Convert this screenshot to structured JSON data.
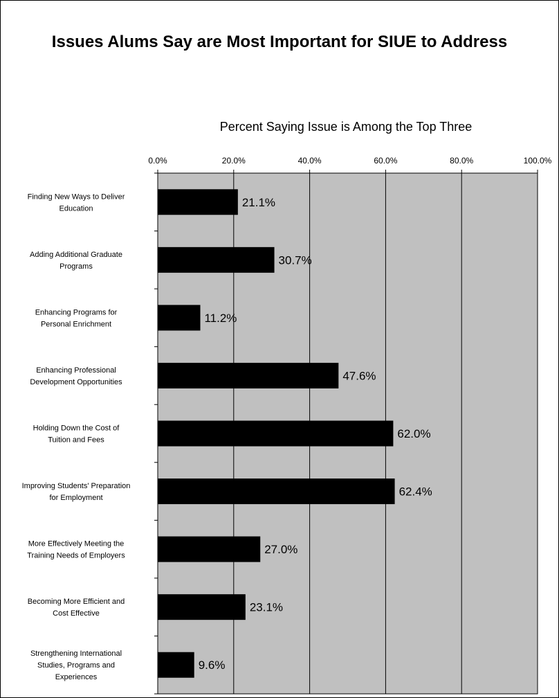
{
  "chart_data": {
    "type": "bar",
    "orientation": "horizontal",
    "title": "Issues Alums Say are Most Important for SIUE to Address",
    "xlabel": "Percent Saying Issue is Among the Top Three",
    "xlim": [
      0,
      100
    ],
    "x_ticks": [
      "0.0%",
      "20.0%",
      "40.0%",
      "60.0%",
      "80.0%",
      "100.0%"
    ],
    "grid": true,
    "plot_background": "#c0c0c0",
    "bar_color": "#000000",
    "categories": [
      [
        "Finding New Ways to Deliver",
        "Education"
      ],
      [
        "Adding Additional Graduate",
        "Programs"
      ],
      [
        "Enhancing Programs for",
        "Personal Enrichment"
      ],
      [
        "Enhancing Professional",
        "Development Opportunities"
      ],
      [
        "Holding Down the Cost of",
        "Tuition and Fees"
      ],
      [
        "Improving Students' Preparation",
        "for Employment"
      ],
      [
        "More Effectively Meeting the",
        "Training Needs of Employers"
      ],
      [
        "Becoming More Efficient and",
        "Cost Effective"
      ],
      [
        "Strengthening International",
        "Studies, Programs and",
        "Experiences"
      ]
    ],
    "values": [
      21.1,
      30.7,
      11.2,
      47.6,
      62.0,
      62.4,
      27.0,
      23.1,
      9.6
    ],
    "data_labels": [
      "21.1%",
      "30.7%",
      "11.2%",
      "47.6%",
      "62.0%",
      "62.4%",
      "27.0%",
      "23.1%",
      "9.6%"
    ]
  }
}
